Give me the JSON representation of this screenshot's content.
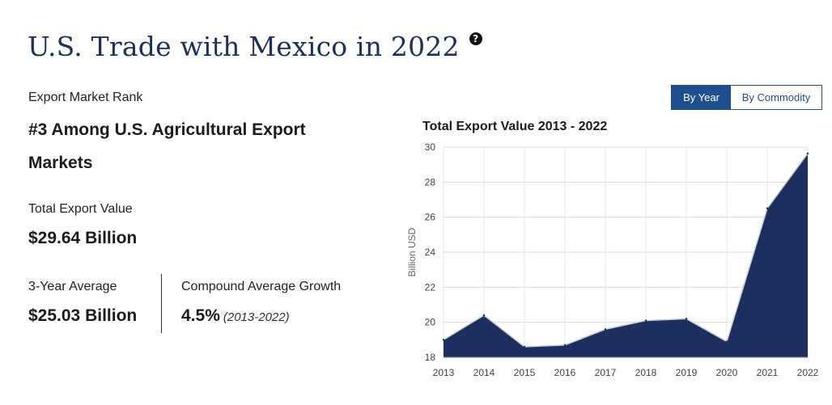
{
  "header": {
    "title": "U.S. Trade with Mexico in 2022",
    "help_icon": "question-circle-icon"
  },
  "stats": {
    "rank_label": "Export Market Rank",
    "rank_value": "#3 Among U.S. Agricultural Export Markets",
    "total_label": "Total Export Value",
    "total_value": "$29.64 Billion",
    "avg_label": "3-Year Average",
    "avg_value": "$25.03 Billion",
    "growth_label": "Compound Average Growth",
    "growth_value": "4.5%",
    "growth_period": "(2013-2022)"
  },
  "toggle": {
    "by_year": "By Year",
    "by_commodity": "By Commodity",
    "active": "By Year"
  },
  "chart_data": {
    "type": "area",
    "title": "Total Export Value 2013 - 2022",
    "xlabel": "",
    "ylabel": "Billion USD",
    "x": [
      "2013",
      "2014",
      "2015",
      "2016",
      "2017",
      "2018",
      "2019",
      "2020",
      "2021",
      "2022"
    ],
    "values": [
      19.0,
      20.4,
      18.6,
      18.7,
      19.6,
      20.1,
      20.2,
      18.9,
      26.5,
      29.64
    ],
    "ylim": [
      18,
      30
    ],
    "yticks": [
      18,
      20,
      22,
      24,
      26,
      28,
      30
    ],
    "grid": true,
    "fill_color": "#1d2f5e",
    "line_color": "#c8cdd6"
  },
  "colors": {
    "title": "#1d2f5e",
    "accent": "#1f4f8f"
  }
}
